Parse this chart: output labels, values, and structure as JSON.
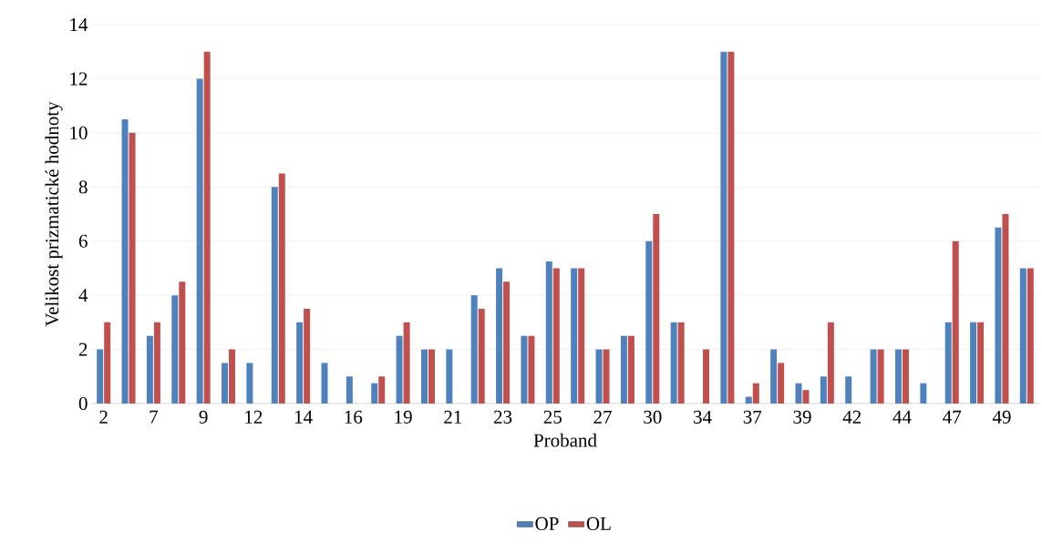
{
  "chart_data": {
    "type": "bar",
    "xlabel": "Proband",
    "ylabel": "Velikost prizmatické hodnoty",
    "categories": [
      "2",
      null,
      "7",
      null,
      "9",
      null,
      "12",
      null,
      "14",
      null,
      "16",
      null,
      "19",
      null,
      "21",
      null,
      "23",
      null,
      "25",
      null,
      "27",
      null,
      "30",
      null,
      "34",
      null,
      "37",
      null,
      "39",
      null,
      "42",
      null,
      "44",
      null,
      "47",
      null,
      "49",
      null
    ],
    "series": [
      {
        "name": "OP",
        "color": "#4f81bd",
        "values": [
          2,
          10.5,
          2.5,
          4,
          12,
          1.5,
          1.5,
          8,
          3,
          1.5,
          1,
          0.75,
          2.5,
          2,
          2,
          4,
          5,
          2.5,
          5.25,
          5,
          2,
          2.5,
          6,
          3,
          0,
          13,
          0.25,
          2,
          0.75,
          1,
          1,
          2,
          2,
          0.75,
          3,
          3,
          6.5,
          5
        ]
      },
      {
        "name": "OL",
        "color": "#c0504d",
        "values": [
          3,
          10,
          3,
          4.5,
          13,
          2,
          0,
          8.5,
          3.5,
          0,
          0,
          1,
          3,
          2,
          0,
          3.5,
          4.5,
          2.5,
          5,
          5,
          2,
          2.5,
          7,
          3,
          2,
          13,
          0.75,
          1.5,
          0.5,
          3,
          0,
          2,
          2,
          0,
          6,
          3,
          7,
          5
        ]
      }
    ],
    "ylim": [
      0,
      14
    ],
    "yticks": [
      0,
      2,
      4,
      6,
      8,
      10,
      12,
      14
    ],
    "grid": "y",
    "legend": "bottom"
  }
}
